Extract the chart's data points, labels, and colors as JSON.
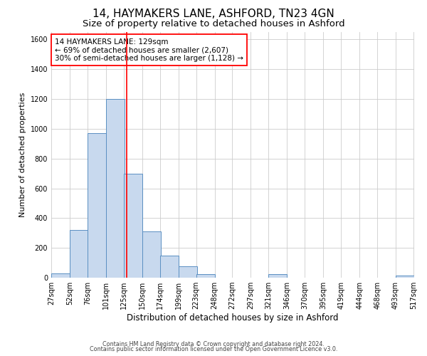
{
  "title": "14, HAYMAKERS LANE, ASHFORD, TN23 4GN",
  "subtitle": "Size of property relative to detached houses in Ashford",
  "xlabel": "Distribution of detached houses by size in Ashford",
  "ylabel": "Number of detached properties",
  "bar_left_edges": [
    27,
    52,
    76,
    101,
    125,
    150,
    174,
    199,
    223,
    248,
    272,
    297,
    321,
    346,
    370,
    395,
    419,
    444,
    468,
    493
  ],
  "bar_heights": [
    30,
    320,
    970,
    1200,
    700,
    310,
    150,
    75,
    25,
    0,
    0,
    0,
    25,
    0,
    0,
    0,
    0,
    0,
    0,
    15
  ],
  "bin_width": 25,
  "bar_color": "#c8d9ee",
  "bar_edge_color": "#5a8fc2",
  "grid_color": "#cccccc",
  "vline_x": 129,
  "vline_color": "red",
  "ylim": [
    0,
    1650
  ],
  "yticks": [
    0,
    200,
    400,
    600,
    800,
    1000,
    1200,
    1400,
    1600
  ],
  "xlim_left": 27,
  "xlim_right": 518,
  "xtick_positions": [
    27,
    52,
    76,
    101,
    125,
    150,
    174,
    199,
    223,
    248,
    272,
    297,
    321,
    346,
    370,
    395,
    419,
    444,
    468,
    493,
    517
  ],
  "xtick_labels": [
    "27sqm",
    "52sqm",
    "76sqm",
    "101sqm",
    "125sqm",
    "150sqm",
    "174sqm",
    "199sqm",
    "223sqm",
    "248sqm",
    "272sqm",
    "297sqm",
    "321sqm",
    "346sqm",
    "370sqm",
    "395sqm",
    "419sqm",
    "444sqm",
    "468sqm",
    "493sqm",
    "517sqm"
  ],
  "annotation_box_text": "14 HAYMAKERS LANE: 129sqm\n← 69% of detached houses are smaller (2,607)\n30% of semi-detached houses are larger (1,128) →",
  "annotation_box_color": "#ffffff",
  "annotation_box_edge_color": "red",
  "footer_line1": "Contains HM Land Registry data © Crown copyright and database right 2024.",
  "footer_line2": "Contains public sector information licensed under the Open Government Licence v3.0.",
  "bg_color": "#ffffff",
  "title_fontsize": 11,
  "subtitle_fontsize": 9.5,
  "ylabel_fontsize": 8,
  "xlabel_fontsize": 8.5,
  "tick_fontsize": 7,
  "annot_fontsize": 7.5,
  "footer_fontsize": 5.8
}
